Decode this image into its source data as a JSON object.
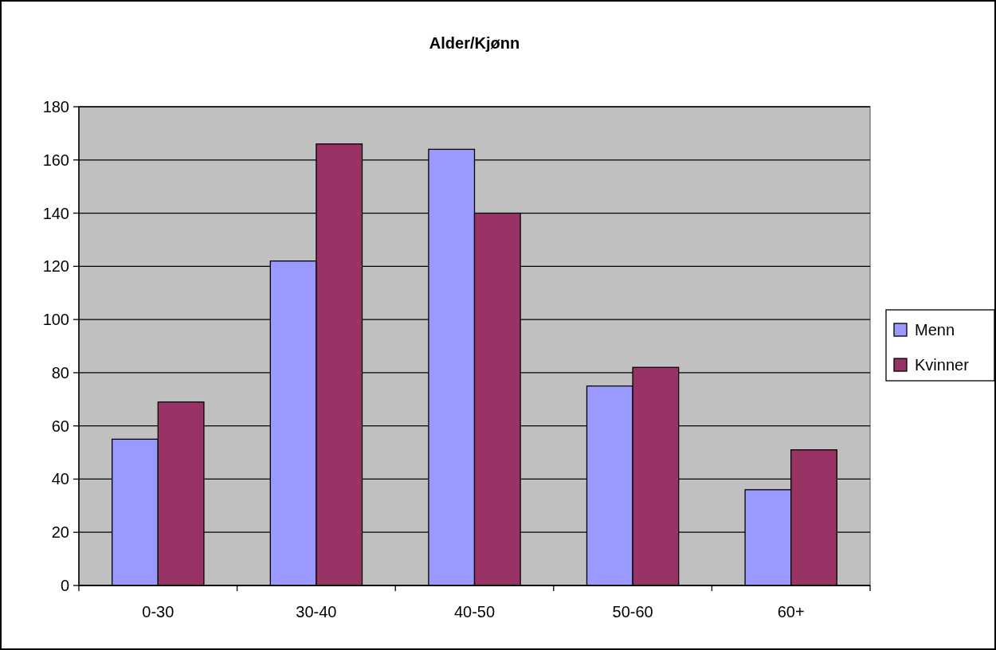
{
  "chart_data": {
    "type": "bar",
    "title": "Alder/Kjønn",
    "categories": [
      "0-30",
      "30-40",
      "40-50",
      "50-60",
      "60+"
    ],
    "series": [
      {
        "name": "Menn",
        "color": "#9999ff",
        "values": [
          55,
          122,
          164,
          75,
          36
        ]
      },
      {
        "name": "Kvinner",
        "color": "#993366",
        "values": [
          69,
          166,
          140,
          82,
          51
        ]
      }
    ],
    "ylim": [
      0,
      180
    ],
    "yticks": [
      0,
      20,
      40,
      60,
      80,
      100,
      120,
      140,
      160,
      180
    ],
    "grid": "y",
    "legend": "right"
  }
}
